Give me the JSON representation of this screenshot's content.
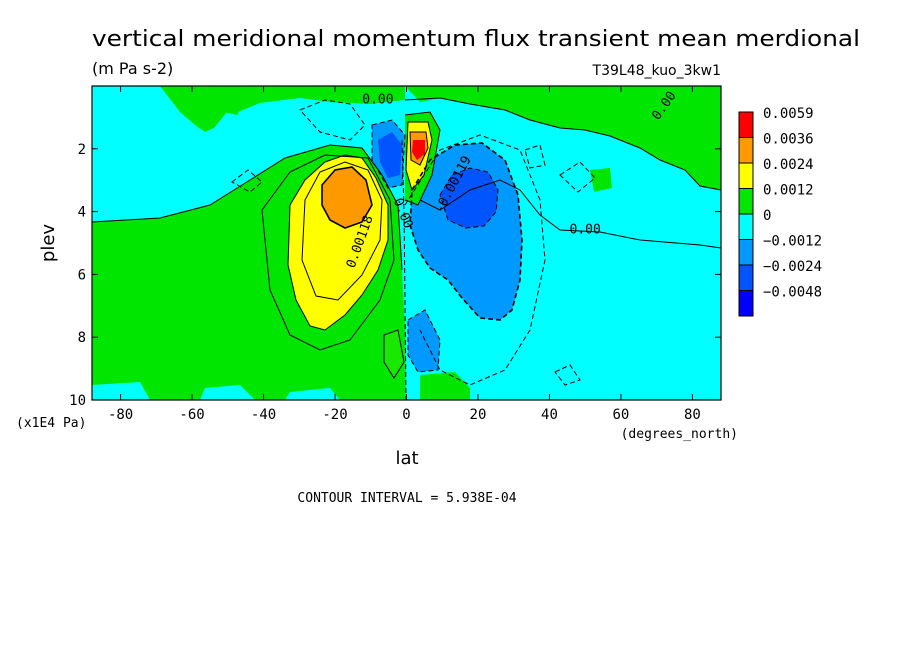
{
  "chart_data": {
    "type": "heatmap",
    "title": "vertical meridional momentum flux transient mean merdional",
    "units": "(m Pa s-2)",
    "run_label": "T39L48_kuo_3kw1",
    "xlabel": "lat",
    "x_units": "(degrees_north)",
    "ylabel": "plev",
    "y_units": "(x1E4 Pa)",
    "xlim": [
      -88,
      88
    ],
    "ylim": [
      0,
      10
    ],
    "y_inverted": true,
    "x_ticks": [
      -80,
      -60,
      -40,
      -20,
      0,
      20,
      40,
      60,
      80
    ],
    "x_tick_labels": [
      "-80",
      "-60",
      "-40",
      "-20",
      "0",
      "20",
      "40",
      "60",
      "80"
    ],
    "y_ticks": [
      2,
      4,
      6,
      8,
      10
    ],
    "y_tick_labels": [
      "2",
      "4",
      "6",
      "8",
      "10"
    ],
    "contour_interval": "CONTOUR INTERVAL = 5.938E-04",
    "legend": {
      "position": "right",
      "levels": [
        {
          "label": "0.0059",
          "color": "#ff0000"
        },
        {
          "label": "0.0036",
          "color": "#ff9900"
        },
        {
          "label": "0.0024",
          "color": "#ffff00"
        },
        {
          "label": "0.0012",
          "color": "#00e600"
        },
        {
          "label": "0",
          "color": "#00ffff"
        },
        {
          "label": "−0.0012",
          "color": "#0099ff"
        },
        {
          "label": "−0.0024",
          "color": "#0055ff"
        },
        {
          "label": "−0.0048",
          "color": "#0000ff"
        }
      ]
    },
    "contour_labels": [
      {
        "text": "0.00",
        "lat": -8,
        "plev": 0.55,
        "rotate": 0
      },
      {
        "text": "0.00",
        "lat": 73,
        "plev": 0.7,
        "rotate": -55
      },
      {
        "text": "-0.00119",
        "lat": 14,
        "plev": 3.2,
        "rotate": -62
      },
      {
        "text": "0.00",
        "lat": -2,
        "plev": 4.1,
        "rotate": 68
      },
      {
        "text": "0.00118",
        "lat": -12,
        "plev": 5.0,
        "rotate": -70
      },
      {
        "text": "0.00",
        "lat": 50,
        "plev": 4.7,
        "rotate": 0
      }
    ]
  }
}
